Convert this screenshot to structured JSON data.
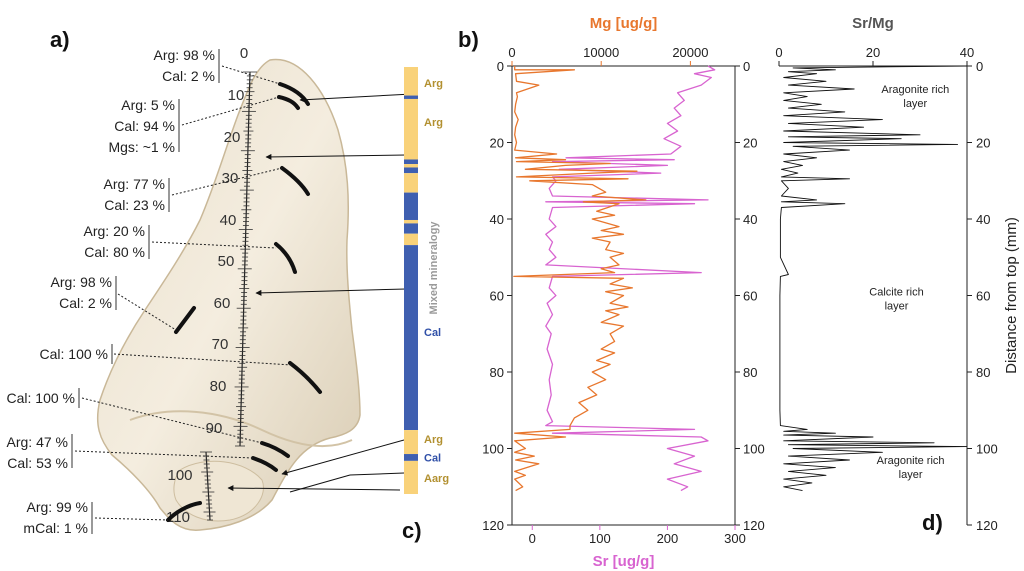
{
  "panel_a": {
    "label": "a)",
    "scale_labels": [
      "0",
      "10",
      "20",
      "30",
      "40",
      "50",
      "60",
      "70",
      "80",
      "90",
      "100",
      "110"
    ],
    "samples": [
      {
        "lines": [
          "Arg: 98 %",
          "Cal: 2 %"
        ]
      },
      {
        "lines": [
          "Arg: 5 %",
          "Cal: 94 %",
          "Mgs: ~1 %"
        ]
      },
      {
        "lines": [
          "Arg: 77 %",
          "Cal: 23 %"
        ]
      },
      {
        "lines": [
          "Arg: 20 %",
          "Cal: 80 %"
        ]
      },
      {
        "lines": [
          "Arg: 98 %",
          "Cal: 2 %"
        ]
      },
      {
        "lines": [
          "Cal: 100 %"
        ]
      },
      {
        "lines": [
          "Cal: 100 %"
        ]
      },
      {
        "lines": [
          "Arg: 47 %",
          "Cal: 53 %"
        ]
      },
      {
        "lines": [
          "Arg: 99 %",
          "mCal: 1 %"
        ]
      }
    ]
  },
  "panel_c": {
    "label": "c)",
    "vertical_label": "Mixed mineralogy",
    "arg_color": "#f9d27a",
    "cal_color": "#3f5fb0",
    "arg_text_color": "#b29030",
    "cal_text_color": "#3050a8",
    "segments": [
      {
        "from": 0,
        "to": 12.5,
        "type": "arg"
      },
      {
        "from": 12.5,
        "to": 14,
        "type": "cal"
      },
      {
        "from": 14,
        "to": 40.5,
        "type": "arg"
      },
      {
        "from": 40.5,
        "to": 42.5,
        "type": "cal"
      },
      {
        "from": 42.5,
        "to": 44,
        "type": "arg"
      },
      {
        "from": 44,
        "to": 46.5,
        "type": "cal"
      },
      {
        "from": 46.5,
        "to": 55,
        "type": "arg"
      },
      {
        "from": 55,
        "to": 67,
        "type": "cal"
      },
      {
        "from": 67,
        "to": 68.5,
        "type": "arg"
      },
      {
        "from": 68.5,
        "to": 73,
        "type": "cal"
      },
      {
        "from": 73,
        "to": 78,
        "type": "arg"
      },
      {
        "from": 78,
        "to": 159,
        "type": "cal"
      },
      {
        "from": 159,
        "to": 169.5,
        "type": "arg"
      },
      {
        "from": 169.5,
        "to": 172.5,
        "type": "cal"
      },
      {
        "from": 172.5,
        "to": 187,
        "type": "arg"
      }
    ],
    "labels": [
      {
        "text": "Arg",
        "at": 7,
        "type": "arg"
      },
      {
        "text": "Arg",
        "at": 24,
        "type": "arg"
      },
      {
        "text": "Cal",
        "at": 116,
        "type": "cal"
      },
      {
        "text": "Arg",
        "at": 163,
        "type": "arg"
      },
      {
        "text": "Cal",
        "at": 171,
        "type": "cal"
      },
      {
        "text": "Aarg",
        "at": 180,
        "type": "arg"
      }
    ]
  },
  "chart_data": [
    {
      "panel": "b)",
      "type": "line",
      "ylabel": "",
      "ylim": [
        0,
        120
      ],
      "y_reversed": true,
      "yticks": [
        0,
        20,
        40,
        60,
        80,
        100,
        120
      ],
      "grid": false,
      "series": [
        {
          "name": "Mg [ug/g]",
          "color": "#e8772e",
          "axis": "top",
          "xlim": [
            0,
            25000
          ],
          "xticks": [
            0,
            10000,
            20000
          ],
          "points": [
            [
              300,
              0
            ],
            [
              300,
              1
            ],
            [
              7000,
              1
            ],
            [
              400,
              2
            ],
            [
              500,
              4
            ],
            [
              3000,
              5
            ],
            [
              500,
              7
            ],
            [
              600,
              8
            ],
            [
              400,
              10
            ],
            [
              300,
              12
            ],
            [
              700,
              14
            ],
            [
              400,
              16
            ],
            [
              300,
              18
            ],
            [
              500,
              20
            ],
            [
              300,
              22
            ],
            [
              5000,
              23
            ],
            [
              400,
              24
            ],
            [
              6000,
              24.5
            ],
            [
              500,
              25
            ],
            [
              11000,
              25.5
            ],
            [
              6000,
              26
            ],
            [
              1500,
              27
            ],
            [
              14000,
              27.5
            ],
            [
              9000,
              28
            ],
            [
              500,
              29
            ],
            [
              13000,
              29.5
            ],
            [
              2000,
              30
            ],
            [
              9000,
              31
            ],
            [
              10500,
              33
            ],
            [
              9000,
              34
            ],
            [
              15000,
              35
            ],
            [
              8000,
              35.5
            ],
            [
              12000,
              36
            ],
            [
              9500,
              38
            ],
            [
              11500,
              39
            ],
            [
              9000,
              40
            ],
            [
              12000,
              42
            ],
            [
              10000,
              43
            ],
            [
              12500,
              44
            ],
            [
              9000,
              45
            ],
            [
              11000,
              46
            ],
            [
              10500,
              48
            ],
            [
              12500,
              49
            ],
            [
              11000,
              50
            ],
            [
              12000,
              52
            ],
            [
              10000,
              53
            ],
            [
              11500,
              54
            ],
            [
              200,
              55
            ],
            [
              12500,
              55.5
            ],
            [
              11000,
              57
            ],
            [
              13500,
              58
            ],
            [
              10500,
              59
            ],
            [
              12500,
              60
            ],
            [
              11000,
              62
            ],
            [
              13000,
              63
            ],
            [
              10500,
              64
            ],
            [
              12000,
              65
            ],
            [
              10000,
              67
            ],
            [
              12500,
              68
            ],
            [
              11000,
              70
            ],
            [
              11500,
              72
            ],
            [
              10000,
              74
            ],
            [
              11500,
              75
            ],
            [
              9500,
              77
            ],
            [
              11000,
              78
            ],
            [
              9000,
              80
            ],
            [
              10500,
              82
            ],
            [
              8500,
              84
            ],
            [
              9500,
              86
            ],
            [
              7500,
              88
            ],
            [
              8500,
              90
            ],
            [
              7000,
              92
            ],
            [
              6500,
              94
            ],
            [
              6500,
              95
            ],
            [
              300,
              96
            ],
            [
              6000,
              97
            ],
            [
              300,
              98
            ],
            [
              1500,
              100
            ],
            [
              300,
              101
            ],
            [
              2500,
              102
            ],
            [
              400,
              103
            ],
            [
              3000,
              104
            ],
            [
              300,
              106
            ],
            [
              1500,
              107
            ],
            [
              300,
              108
            ],
            [
              1200,
              110
            ],
            [
              400,
              111
            ]
          ]
        },
        {
          "name": "Sr [ug/g]",
          "color": "#d864d0",
          "axis": "bottom",
          "xlim": [
            -30,
            300
          ],
          "xticks": [
            0,
            100,
            200,
            300
          ],
          "points": [
            [
              260,
              0
            ],
            [
              270,
              1
            ],
            [
              240,
              2
            ],
            [
              265,
              3
            ],
            [
              250,
              5
            ],
            [
              215,
              7
            ],
            [
              225,
              9
            ],
            [
              210,
              11
            ],
            [
              220,
              13
            ],
            [
              200,
              15
            ],
            [
              215,
              17
            ],
            [
              195,
              19
            ],
            [
              220,
              21
            ],
            [
              205,
              23
            ],
            [
              50,
              24
            ],
            [
              210,
              24.5
            ],
            [
              30,
              25
            ],
            [
              200,
              26
            ],
            [
              40,
              27
            ],
            [
              190,
              28
            ],
            [
              30,
              29
            ],
            [
              35,
              30
            ],
            [
              25,
              32
            ],
            [
              30,
              34
            ],
            [
              260,
              35
            ],
            [
              20,
              35.5
            ],
            [
              240,
              36
            ],
            [
              30,
              37
            ],
            [
              25,
              40
            ],
            [
              35,
              42
            ],
            [
              20,
              44
            ],
            [
              30,
              46
            ],
            [
              25,
              48
            ],
            [
              35,
              50
            ],
            [
              20,
              52
            ],
            [
              250,
              54
            ],
            [
              30,
              55
            ],
            [
              25,
              58
            ],
            [
              35,
              60
            ],
            [
              22,
              62
            ],
            [
              30,
              65
            ],
            [
              20,
              68
            ],
            [
              28,
              70
            ],
            [
              22,
              74
            ],
            [
              30,
              78
            ],
            [
              25,
              82
            ],
            [
              28,
              86
            ],
            [
              22,
              90
            ],
            [
              30,
              93
            ],
            [
              20,
              94
            ],
            [
              240,
              95
            ],
            [
              30,
              96
            ],
            [
              250,
              97
            ],
            [
              260,
              98
            ],
            [
              200,
              100
            ],
            [
              240,
              102
            ],
            [
              210,
              104
            ],
            [
              250,
              106
            ],
            [
              200,
              108
            ],
            [
              230,
              110
            ],
            [
              220,
              111
            ]
          ]
        }
      ]
    },
    {
      "panel": "d)",
      "type": "line",
      "title": "Sr/Mg",
      "ylabel": "Distance from top (mm)",
      "xlim": [
        0,
        40
      ],
      "xticks": [
        0,
        20,
        40
      ],
      "ylim": [
        0,
        120
      ],
      "y_reversed": true,
      "yticks": [
        0,
        20,
        40,
        60,
        80,
        100,
        120
      ],
      "grid": false,
      "color": "#111111",
      "annotations": [
        {
          "lines": [
            "Aragonite rich",
            "layer"
          ],
          "x": 29,
          "y": 7
        },
        {
          "lines": [
            "Calcite rich",
            "layer"
          ],
          "x": 25,
          "y": 60
        },
        {
          "lines": [
            "Aragonite rich",
            "layer"
          ],
          "x": 28,
          "y": 104
        }
      ],
      "series": [
        {
          "name": "Sr/Mg",
          "points": [
            [
              40,
              0
            ],
            [
              3,
              0.5
            ],
            [
              12,
              1
            ],
            [
              2,
              1.5
            ],
            [
              8,
              2
            ],
            [
              1,
              3
            ],
            [
              10,
              4
            ],
            [
              2,
              5
            ],
            [
              16,
              6
            ],
            [
              1,
              7
            ],
            [
              6,
              8
            ],
            [
              1,
              9
            ],
            [
              9,
              10
            ],
            [
              2,
              11
            ],
            [
              14,
              12
            ],
            [
              1,
              13
            ],
            [
              22,
              14
            ],
            [
              2,
              15
            ],
            [
              18,
              16
            ],
            [
              1,
              17
            ],
            [
              30,
              18
            ],
            [
              2,
              18.5
            ],
            [
              26,
              19
            ],
            [
              1,
              20
            ],
            [
              38,
              20.5
            ],
            [
              3,
              21
            ],
            [
              15,
              22
            ],
            [
              1,
              23
            ],
            [
              8,
              24
            ],
            [
              1,
              25
            ],
            [
              5,
              26
            ],
            [
              0.5,
              27
            ],
            [
              4,
              28
            ],
            [
              0.5,
              29
            ],
            [
              15,
              29.5
            ],
            [
              0.5,
              30
            ],
            [
              2,
              32
            ],
            [
              0.5,
              34
            ],
            [
              8,
              35
            ],
            [
              0.5,
              35.5
            ],
            [
              14,
              36
            ],
            [
              0.5,
              37
            ],
            [
              0.3,
              40
            ],
            [
              0.3,
              45
            ],
            [
              0.3,
              50
            ],
            [
              2,
              54.5
            ],
            [
              0.3,
              55
            ],
            [
              0.2,
              60
            ],
            [
              0.2,
              70
            ],
            [
              0.2,
              80
            ],
            [
              0.2,
              90
            ],
            [
              0.3,
              94
            ],
            [
              6,
              95
            ],
            [
              1,
              95.5
            ],
            [
              12,
              96
            ],
            [
              1,
              96.5
            ],
            [
              20,
              97
            ],
            [
              1,
              98
            ],
            [
              33,
              98.5
            ],
            [
              2,
              99
            ],
            [
              40,
              99.5
            ],
            [
              3,
              100
            ],
            [
              22,
              101
            ],
            [
              2,
              102
            ],
            [
              15,
              103
            ],
            [
              1,
              104
            ],
            [
              12,
              105
            ],
            [
              2,
              106
            ],
            [
              10,
              107
            ],
            [
              1,
              108
            ],
            [
              7,
              109
            ],
            [
              1,
              110
            ],
            [
              5,
              111
            ]
          ]
        }
      ]
    }
  ]
}
